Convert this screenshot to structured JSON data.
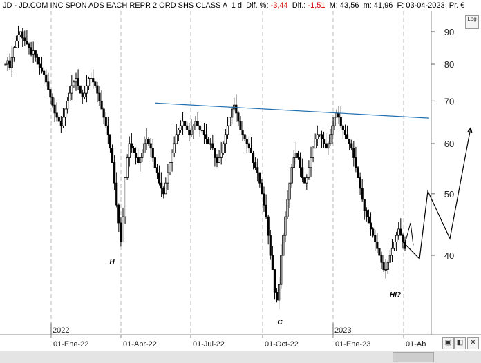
{
  "header": {
    "symbol": "JD - JD.COM INC SPON ADS EACH REPR 2 ORD SHS CLASS A",
    "interval": "1 d",
    "dif_pct_label": "Dif. %:",
    "dif_pct_value": "-3,44",
    "dif_label": "Dif.:",
    "dif_value": "-1,51",
    "max_label": "M:",
    "max_value": "43,56",
    "min_label": "m:",
    "min_value": "41,96",
    "date_label": "F:",
    "date_value": "03-04-2023",
    "percent_label": "Pr. €"
  },
  "toolbar": {
    "log_label": "Log"
  },
  "colors": {
    "trendline": "#1f6fb2",
    "candle": "#000000",
    "grid": "#b8b8b8"
  },
  "chart_data": {
    "type": "candlestick",
    "y_scale": "log",
    "ylim": [
      30,
      97
    ],
    "y_ticks": [
      40,
      50,
      60,
      70,
      80,
      90
    ],
    "x_ticks": [
      "01-Ene-22",
      "01-Abr-22",
      "01-Jul-22",
      "01-Oct-22",
      "01-Ene-23",
      "01-Ab"
    ],
    "year_markers": [
      "2022",
      "2023"
    ],
    "grid": "vertical dashed at quarter starts",
    "closes": [
      80,
      81,
      79,
      82,
      85,
      87,
      89,
      90,
      88,
      87,
      86,
      85,
      83,
      84,
      82,
      80,
      79,
      78,
      77,
      75,
      73,
      71,
      69,
      67,
      66,
      65,
      64,
      66,
      68,
      70,
      72,
      74,
      75,
      76,
      74,
      72,
      71,
      72,
      74,
      76,
      76,
      75,
      74,
      72,
      70,
      68,
      66,
      64,
      62,
      59,
      56,
      52,
      48,
      45,
      42,
      46,
      53,
      57,
      60,
      59,
      58,
      57,
      56,
      57,
      58,
      60,
      61,
      60,
      59,
      57,
      55,
      54,
      52,
      51,
      50,
      52,
      54,
      56,
      58,
      60,
      62,
      63,
      64,
      65,
      64,
      63,
      62,
      63,
      64,
      65,
      64,
      63,
      63,
      62,
      61,
      60,
      60,
      59,
      57,
      56,
      57,
      58,
      60,
      62,
      64,
      66,
      68,
      69,
      67,
      65,
      63,
      62,
      61,
      60,
      59,
      58,
      56,
      55,
      54,
      52,
      50,
      48,
      46,
      43,
      40,
      38,
      35,
      34,
      36,
      40,
      43,
      46,
      49,
      52,
      55,
      57,
      58,
      57,
      55,
      53,
      52,
      53,
      55,
      57,
      59,
      61,
      62,
      62,
      61,
      60,
      59,
      60,
      62,
      64,
      66,
      67,
      66,
      64,
      63,
      62,
      61,
      60,
      59,
      57,
      55,
      53,
      51,
      49,
      47,
      46,
      45,
      44,
      43,
      42,
      41,
      40,
      39,
      38,
      38,
      39,
      40,
      41,
      42,
      43,
      44,
      43,
      42,
      41
    ],
    "annotations": [
      {
        "label": "H",
        "type": "text"
      },
      {
        "label": "C",
        "type": "text"
      },
      {
        "label": "HI?",
        "type": "text"
      },
      {
        "label": "",
        "type": "trendline",
        "from": [
          0.355,
          69.5
        ],
        "to": [
          0.995,
          65.8
        ]
      }
    ],
    "projection": [
      42,
      39.5,
      50.5,
      42.5,
      63.5
    ]
  }
}
